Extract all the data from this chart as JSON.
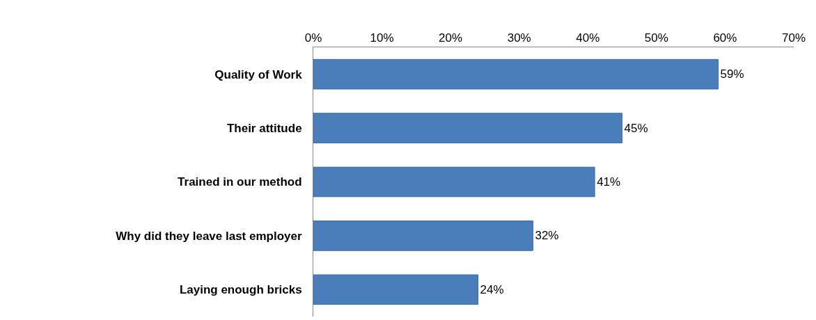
{
  "chart_data": {
    "type": "bar",
    "orientation": "horizontal",
    "categories": [
      "Quality of Work",
      "Their attitude",
      "Trained in our method",
      "Why did they leave last employer",
      "Laying enough bricks"
    ],
    "values": [
      59,
      45,
      41,
      32,
      24
    ],
    "value_labels": [
      "59%",
      "45%",
      "41%",
      "32%",
      "24%"
    ],
    "color": "#4a7ebb",
    "xlim": [
      0,
      70
    ],
    "xticks": [
      {
        "value": 0,
        "label": "0%"
      },
      {
        "value": 10,
        "label": "10%"
      },
      {
        "value": 20,
        "label": "20%"
      },
      {
        "value": 30,
        "label": "30%"
      },
      {
        "value": 40,
        "label": "40%"
      },
      {
        "value": 50,
        "label": "50%"
      },
      {
        "value": 60,
        "label": "60%"
      },
      {
        "value": 70,
        "label": "70%"
      }
    ],
    "grid": false,
    "legend": false
  }
}
